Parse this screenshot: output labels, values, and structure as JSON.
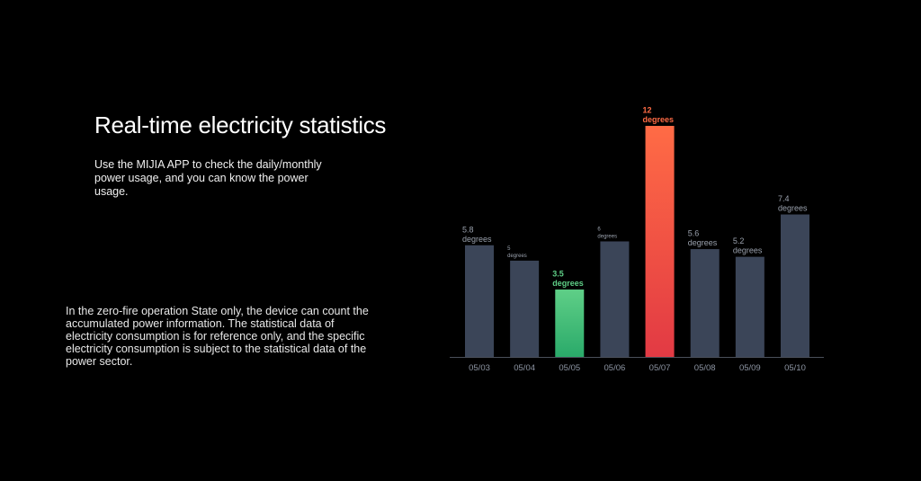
{
  "heading": "Real-time electricity statistics",
  "description": "Use the MIJIA APP to check the daily/monthly power usage, and you can know the power usage.",
  "note": "In the zero-fire operation State only, the device can count the accumulated power information. The statistical data of electricity consumption is for reference only, and the specific electricity consumption is subject to the statistical data of the power sector.",
  "chart_data": {
    "type": "bar",
    "title": "",
    "xlabel": "",
    "ylabel": "",
    "categories": [
      "05/03",
      "05/04",
      "05/05",
      "05/06",
      "05/07",
      "05/08",
      "05/09",
      "05/10"
    ],
    "values": [
      5.8,
      5,
      3.5,
      6,
      12,
      5.6,
      5.2,
      7.4
    ],
    "value_labels": [
      [
        "5.8",
        "degrees"
      ],
      [
        "5",
        "degrees"
      ],
      [
        "3.5",
        "degrees"
      ],
      [
        "6",
        "degrees"
      ],
      [
        "12",
        "degrees"
      ],
      [
        "5.6",
        "degrees"
      ],
      [
        "5.2",
        "degrees"
      ],
      [
        "7.4",
        "degrees"
      ]
    ],
    "highlights": {
      "05/05": "green-gradient",
      "05/07": "red-gradient"
    },
    "ylim": [
      0,
      12
    ],
    "grid": false,
    "colors": {
      "bar": "#3b4558",
      "axis": "#4a4f5a",
      "tick_label": "#8d95a3",
      "value_label": "#9aa1ad",
      "green_top": "#5fcf87",
      "green_bottom": "#2aaa6a",
      "green_label": "#5fcf87",
      "red_top": "#ff6b45",
      "red_bottom": "#e23a44",
      "red_label": "#ff6b45"
    }
  }
}
